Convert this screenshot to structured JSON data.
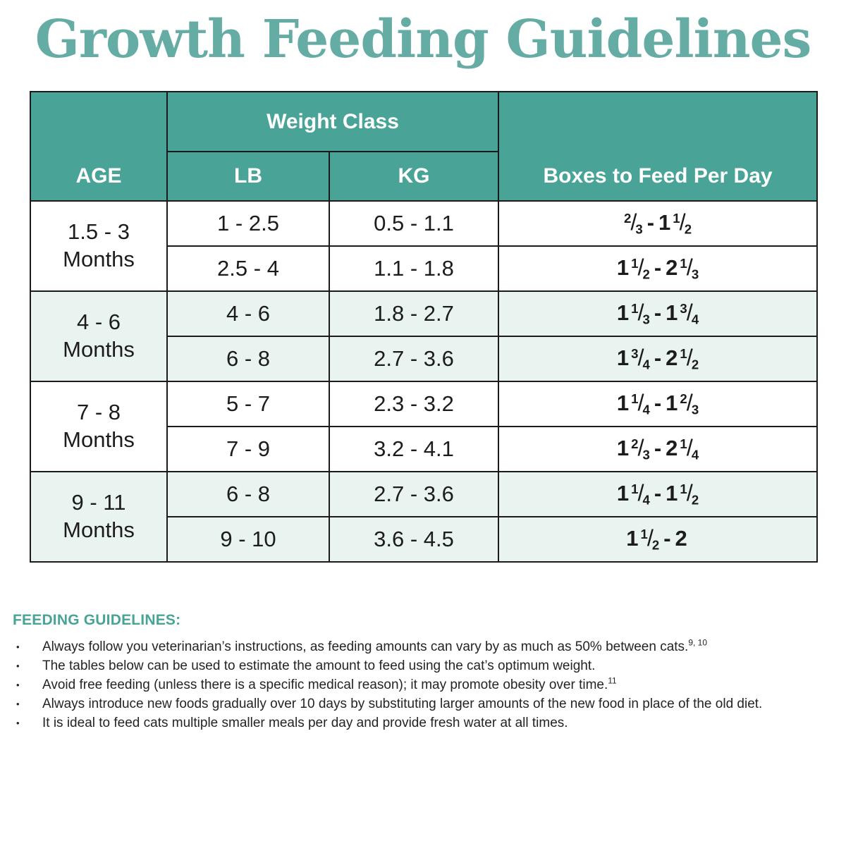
{
  "title": "Growth Feeding Guidelines",
  "colors": {
    "header_teal": "#49a497",
    "title_teal": "#65aca4",
    "shaded_row": "#e9f3f0",
    "border": "#1b1b1b"
  },
  "table": {
    "headers": {
      "age": "AGE",
      "weight_class": "Weight Class",
      "lb": "LB",
      "kg": "KG",
      "boxes": "Boxes to Feed Per Day"
    },
    "groups": [
      {
        "age_line1": "1.5 - 3",
        "age_line2": "Months",
        "shaded": false,
        "rows": [
          {
            "lb": "1 - 2.5",
            "kg": "0.5 - 1.1",
            "boxes": {
              "from": {
                "whole": "",
                "num": "2",
                "den": "3"
              },
              "to": {
                "whole": "1",
                "num": "1",
                "den": "2"
              }
            }
          },
          {
            "lb": "2.5 - 4",
            "kg": "1.1 - 1.8",
            "boxes": {
              "from": {
                "whole": "1",
                "num": "1",
                "den": "2"
              },
              "to": {
                "whole": "2",
                "num": "1",
                "den": "3"
              }
            }
          }
        ]
      },
      {
        "age_line1": "4 - 6",
        "age_line2": "Months",
        "shaded": true,
        "rows": [
          {
            "lb": "4 - 6",
            "kg": "1.8 - 2.7",
            "boxes": {
              "from": {
                "whole": "1",
                "num": "1",
                "den": "3"
              },
              "to": {
                "whole": "1",
                "num": "3",
                "den": "4"
              }
            }
          },
          {
            "lb": "6 - 8",
            "kg": "2.7 - 3.6",
            "boxes": {
              "from": {
                "whole": "1",
                "num": "3",
                "den": "4"
              },
              "to": {
                "whole": "2",
                "num": "1",
                "den": "2"
              }
            }
          }
        ]
      },
      {
        "age_line1": "7 - 8",
        "age_line2": "Months",
        "shaded": false,
        "rows": [
          {
            "lb": "5 - 7",
            "kg": "2.3 - 3.2",
            "boxes": {
              "from": {
                "whole": "1",
                "num": "1",
                "den": "4"
              },
              "to": {
                "whole": "1",
                "num": "2",
                "den": "3"
              }
            }
          },
          {
            "lb": "7 - 9",
            "kg": "3.2 - 4.1",
            "boxes": {
              "from": {
                "whole": "1",
                "num": "2",
                "den": "3"
              },
              "to": {
                "whole": "2",
                "num": "1",
                "den": "4"
              }
            }
          }
        ]
      },
      {
        "age_line1": "9 - 11",
        "age_line2": "Months",
        "shaded": true,
        "rows": [
          {
            "lb": "6 - 8",
            "kg": "2.7 - 3.6",
            "boxes": {
              "from": {
                "whole": "1",
                "num": "1",
                "den": "4"
              },
              "to": {
                "whole": "1",
                "num": "1",
                "den": "2"
              }
            }
          },
          {
            "lb": "9 - 10",
            "kg": "3.6 - 4.5",
            "boxes": {
              "from": {
                "whole": "1",
                "num": "1",
                "den": "2"
              },
              "to": {
                "whole": "2",
                "num": "",
                "den": ""
              }
            }
          }
        ]
      }
    ]
  },
  "guidelines": {
    "heading": "FEEDING GUIDELINES:",
    "bullet_char": "•",
    "bullets": [
      {
        "text": "Always follow you veterinarian’s instructions, as feeding amounts can vary by as much as 50% between cats.",
        "sup": "9, 10"
      },
      {
        "text": "The tables below can be used to estimate the amount to feed using the cat’s optimum weight.",
        "sup": ""
      },
      {
        "text": "Avoid free feeding (unless there is a specific medical reason); it may promote obesity over time.",
        "sup": "11"
      },
      {
        "text": "Always introduce new foods gradually over 10 days by substituting larger amounts of the new food in place of the old diet.",
        "sup": ""
      },
      {
        "text": "It is ideal to feed cats multiple smaller meals per day and provide fresh water at all times.",
        "sup": ""
      }
    ]
  }
}
